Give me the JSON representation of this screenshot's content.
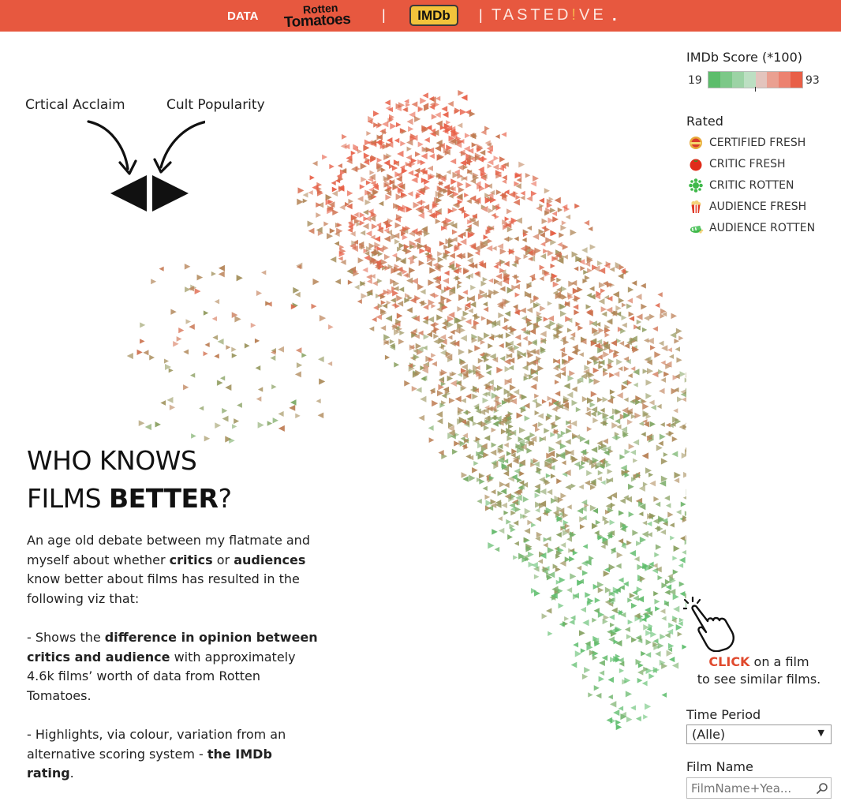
{
  "header": {
    "data_label": "DATA",
    "rt_logo_line1": "Rotten",
    "rt_logo_line2": "Tomatoes",
    "separator": "|",
    "imdb_logo": "IMDb",
    "tastedive_part1": "TASTED",
    "tastedive_accent": "!",
    "tastedive_part2": "VE",
    "trailing_dot": ".",
    "background_color": "#e7583f"
  },
  "annotations": {
    "left_label": "Crtical Acclaim",
    "right_label": "Cult Popularity"
  },
  "title": {
    "line1": "WHO KNOWS",
    "line2_normal": "FILMS ",
    "line2_bold": "BETTER",
    "line2_end": "?"
  },
  "description": {
    "p1_a": "An age old debate between my flatmate and myself about whether ",
    "p1_b": "critics",
    "p1_c": " or ",
    "p1_d": "audiences",
    "p1_e": " know better about films has resulted in the following viz that:",
    "p2_a": "- Shows the ",
    "p2_b": "difference in opinion between critics and audience",
    "p2_c": " with approximately 4.6k films’ worth of data from Rotten Tomatoes.",
    "p3_a": "- Highlights, via colour, variation from an alternative scoring system - ",
    "p3_b": "the IMDb rating",
    "p3_c": "."
  },
  "legend": {
    "title": "IMDb Score (*100)",
    "min": "19",
    "max": "93",
    "colors": [
      "#5cbd6b",
      "#7cc888",
      "#9cd3a5",
      "#bcdfc2",
      "#e3c4bd",
      "#eaa091",
      "#ec8270",
      "#e85f47"
    ]
  },
  "rated": {
    "title": "Rated",
    "items": [
      {
        "label": "CERTIFIED FRESH",
        "icon": "certified-fresh-icon"
      },
      {
        "label": "CRITIC FRESH",
        "icon": "tomato-icon"
      },
      {
        "label": "CRITIC ROTTEN",
        "icon": "splat-icon"
      },
      {
        "label": "AUDIENCE FRESH",
        "icon": "popcorn-icon"
      },
      {
        "label": "AUDIENCE ROTTEN",
        "icon": "spilled-popcorn-icon"
      }
    ]
  },
  "click_hint": {
    "strong": "CLICK",
    "rest": " on a film",
    "line2": "to see similar films."
  },
  "filters": {
    "time_period_label": "Time Period",
    "time_period_value": "(Alle)",
    "film_name_label": "Film Name",
    "film_name_placeholder": "FilmName+Yea..."
  },
  "chart_data": {
    "type": "scatter",
    "title": "",
    "encoding": "Rotten Tomatoes critic vs audience opinion per film; colour = IMDb Score (*100)",
    "film_count": "approximately 4.6k films",
    "marks": {
      "left_pointing": "Crtical Acclaim",
      "right_pointing": "Cult Popularity"
    },
    "color_range": [
      19,
      93
    ],
    "color_scale": [
      "#5cbd6b",
      "#e85f47"
    ]
  }
}
